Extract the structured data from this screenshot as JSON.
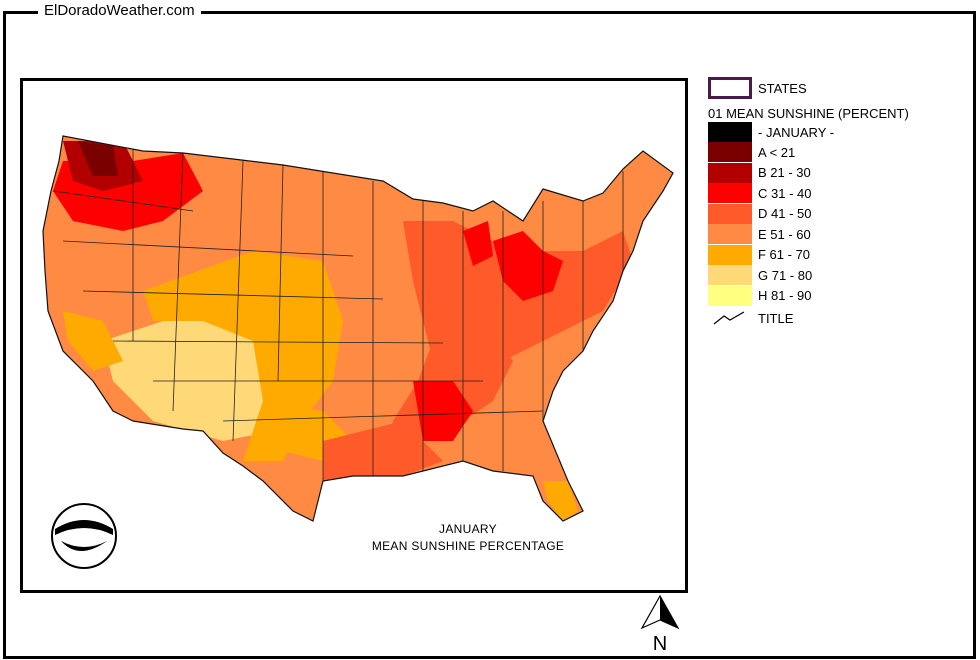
{
  "site": {
    "title": "ElDoradoWeather.com"
  },
  "map": {
    "caption_line1": "JANUARY",
    "caption_line2": "MEAN SUNSHINE PERCENTAGE",
    "logo_text": "NOAA",
    "north_label": "N"
  },
  "legend": {
    "states_label": "STATES",
    "title": "01 MEAN SUNSHINE (PERCENT)",
    "month_label": "- JANUARY -",
    "title_label": "TITLE",
    "classes": [
      {
        "label": "A < 21",
        "color": "#7a0000"
      },
      {
        "label": "B 21 - 30",
        "color": "#b20000"
      },
      {
        "label": "C 31 - 40",
        "color": "#ff0000"
      },
      {
        "label": "D 41 - 50",
        "color": "#ff5a2a"
      },
      {
        "label": "E 51 - 60",
        "color": "#ff8a44"
      },
      {
        "label": "F 61 - 70",
        "color": "#ffaa00"
      },
      {
        "label": "G 71 - 80",
        "color": "#ffd878"
      },
      {
        "label": "H 81 - 90",
        "color": "#ffff80"
      }
    ],
    "month_color": "#000000"
  }
}
